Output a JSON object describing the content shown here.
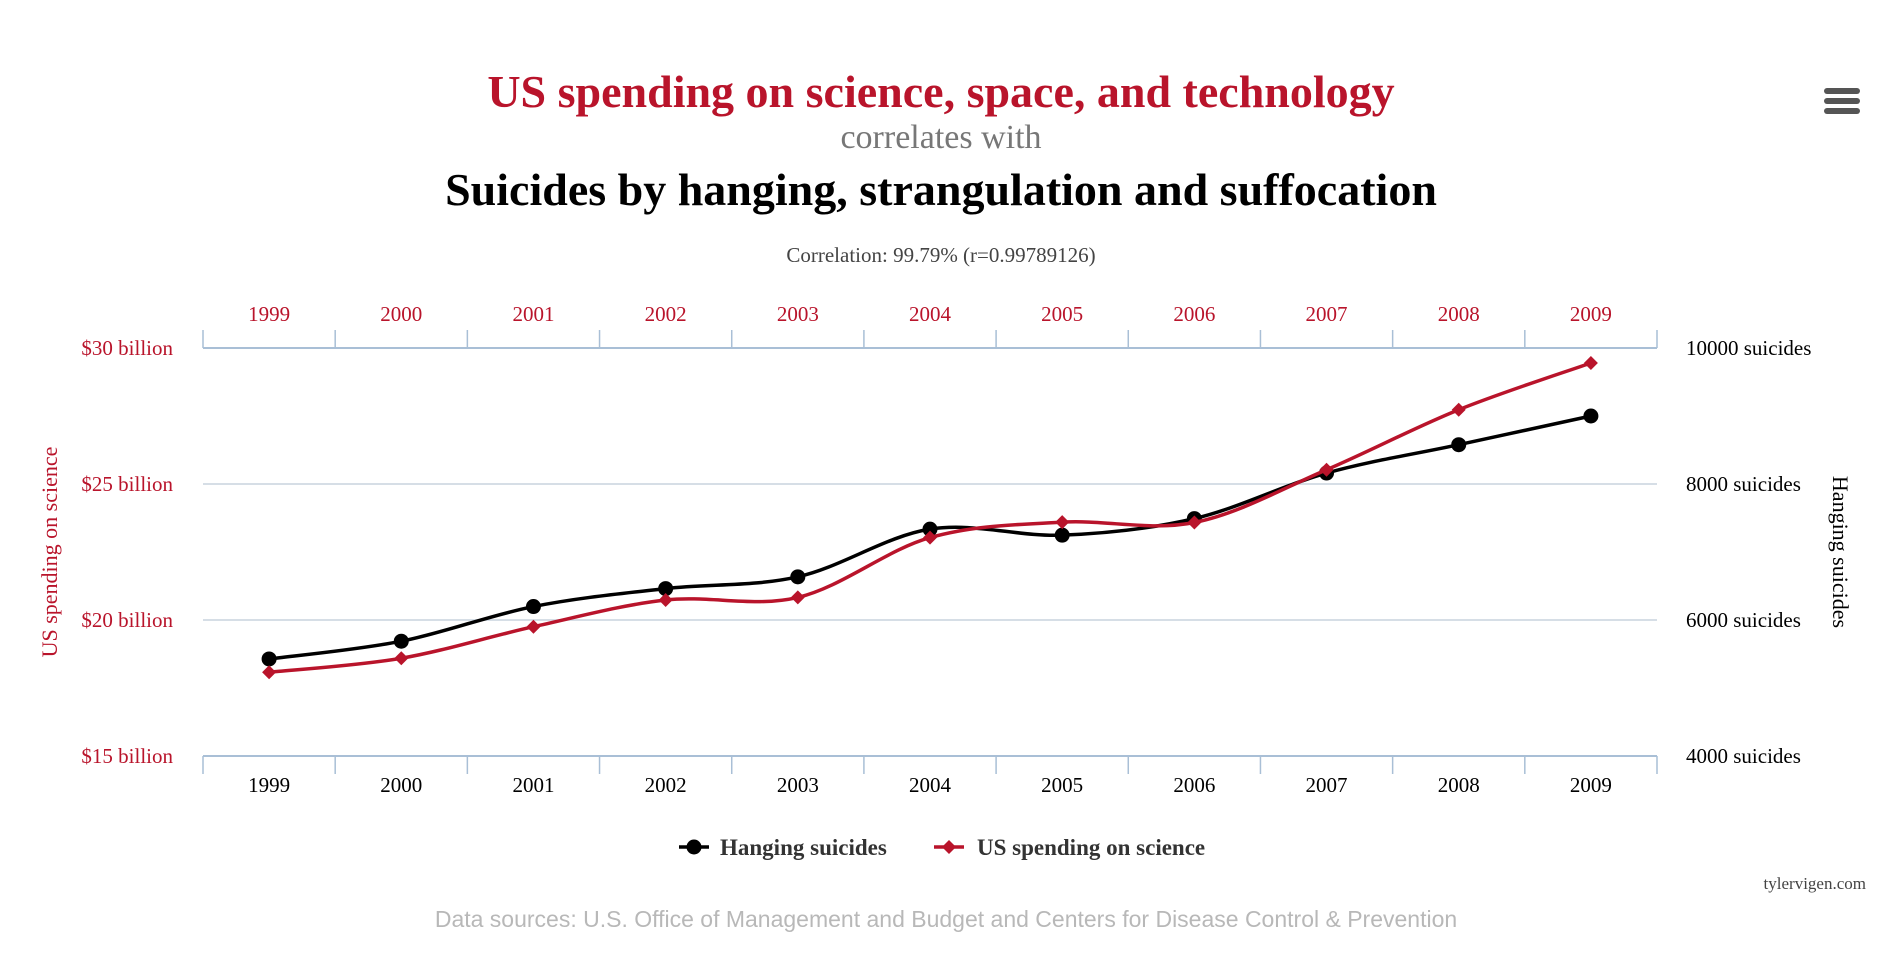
{
  "colors": {
    "spending": "#b9142b",
    "hanging": "#000000",
    "subtitle": "#777777",
    "correlation": "#444444",
    "gridline": "#c8d3de",
    "axis_line": "#a9bfd6",
    "sources": "#b8b8b8",
    "credit": "#444444"
  },
  "menu": {
    "icon": "hamburger-menu-icon"
  },
  "chart_data": {
    "type": "line",
    "title": "US spending on science, space, and technology",
    "subtitle": "correlates with",
    "title2": "Suicides by hanging, strangulation and suffocation",
    "correlation_text": "Correlation: 99.79% (r=0.99789126)",
    "categories": [
      "1999",
      "2000",
      "2001",
      "2002",
      "2003",
      "2004",
      "2005",
      "2006",
      "2007",
      "2008",
      "2009"
    ],
    "left_axis": {
      "label": "US spending on science",
      "min": 15,
      "max": 30,
      "ticks": [
        {
          "value": 30,
          "label": "$30 billion"
        },
        {
          "value": 25,
          "label": "$25 billion"
        },
        {
          "value": 20,
          "label": "$20 billion"
        },
        {
          "value": 15,
          "label": "$15 billion"
        }
      ]
    },
    "right_axis": {
      "label": "Hanging suicides",
      "min": 4000,
      "max": 10000,
      "ticks": [
        {
          "value": 10000,
          "label": "10000 suicides"
        },
        {
          "value": 8000,
          "label": "8000 suicides"
        },
        {
          "value": 6000,
          "label": "6000 suicides"
        },
        {
          "value": 4000,
          "label": "4000 suicides"
        }
      ]
    },
    "series": [
      {
        "name": "Hanging suicides",
        "axis": "right",
        "marker": "circle",
        "values": [
          5427,
          5688,
          6198,
          6462,
          6635,
          7336,
          7248,
          7491,
          8161,
          8578,
          9000
        ]
      },
      {
        "name": "US spending on science",
        "axis": "left",
        "marker": "diamond",
        "values": [
          18.079,
          18.594,
          19.753,
          20.734,
          20.831,
          23.029,
          23.597,
          23.584,
          25.525,
          27.731,
          29.449
        ]
      }
    ],
    "legend": [
      "Hanging suicides",
      "US spending on science"
    ],
    "legend_position": "bottom-center",
    "credit": "tylervigen.com",
    "sources": "Data sources: U.S. Office of Management and Budget and Centers for Disease Control & Prevention"
  }
}
